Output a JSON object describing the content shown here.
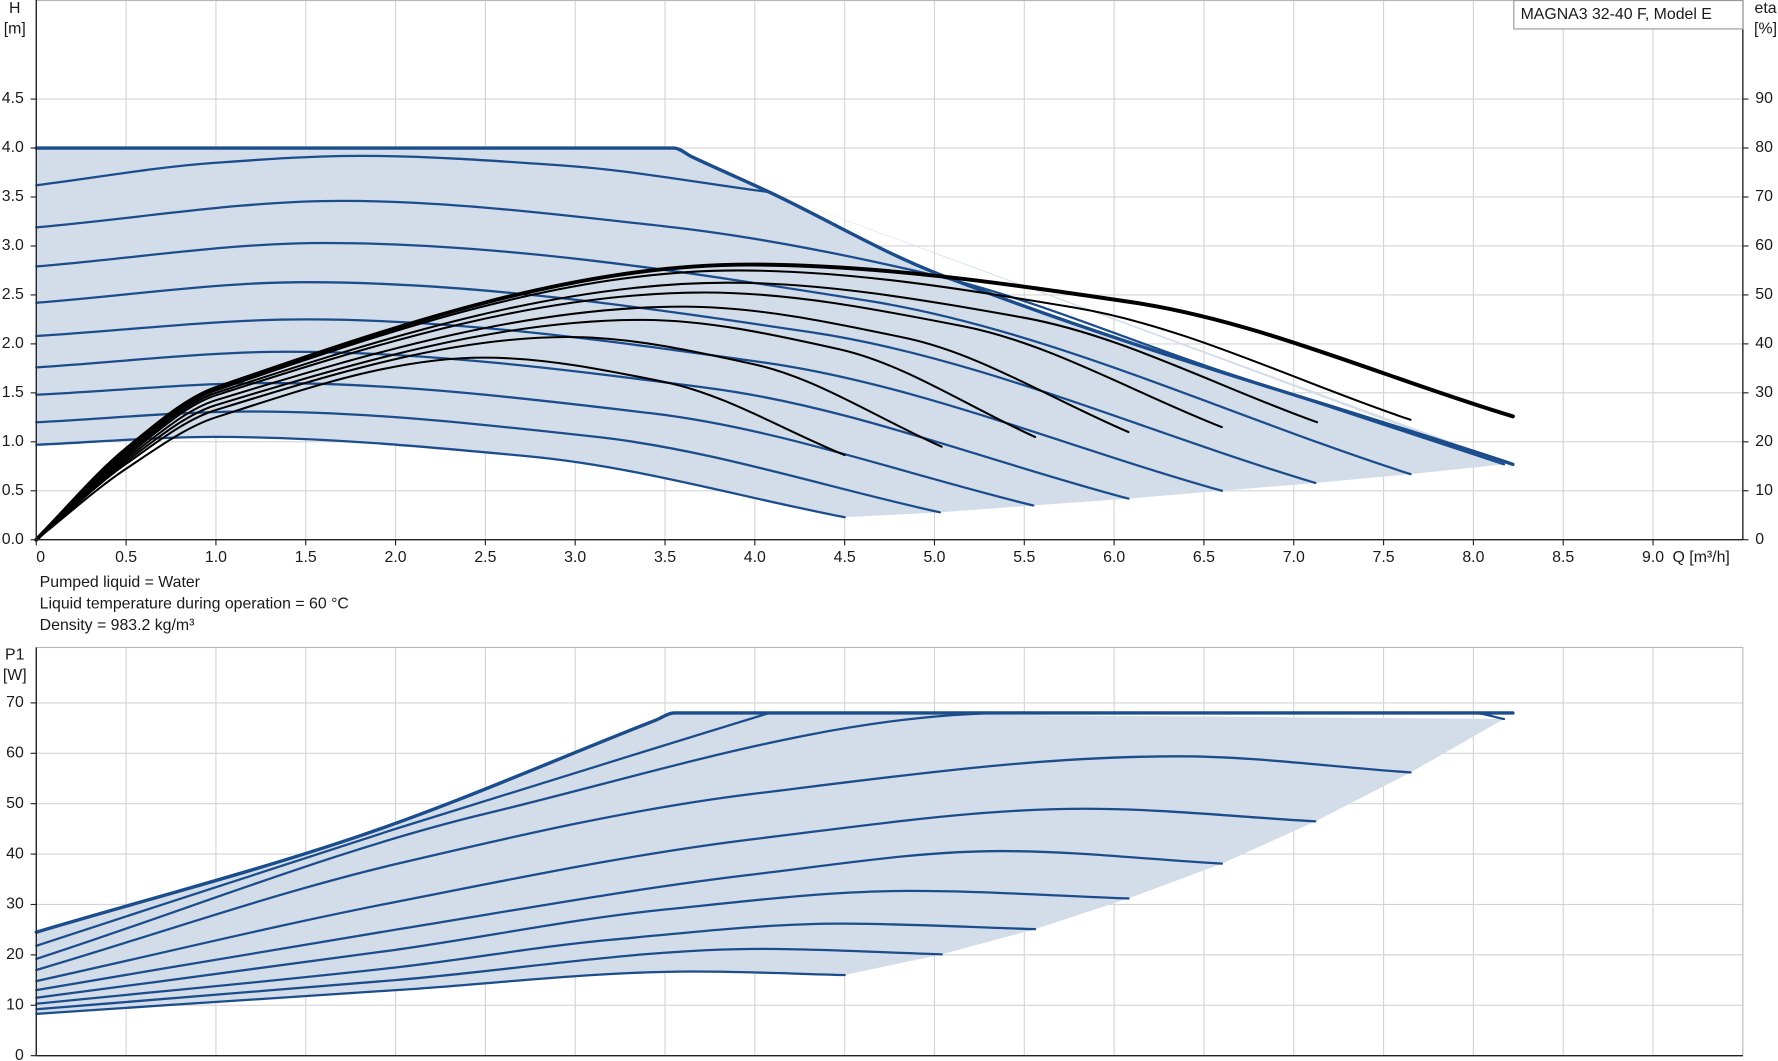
{
  "chart_data": [
    {
      "type": "line",
      "title": "MAGNA3 32-40 F, Model E",
      "xlabel": "Q [m³/h]",
      "ylabel": [
        "H",
        "[m]"
      ],
      "y2label": [
        "eta",
        "[%]"
      ],
      "notes": [
        "Pumped liquid = Water",
        "Liquid temperature during operation = 60 °C",
        "Density = 983.2 kg/m³"
      ],
      "xlim": [
        0,
        9.5
      ],
      "ylim": [
        0,
        5.5
      ],
      "y2lim": [
        0,
        110
      ],
      "xticks": [
        0,
        0.5,
        {
          "value": 1,
          "label": "1.0"
        },
        1.5,
        {
          "value": 2,
          "label": "2.0"
        },
        2.5,
        {
          "value": 3,
          "label": "3.0"
        },
        3.5,
        {
          "value": 4,
          "label": "4.0"
        },
        4.5,
        {
          "value": 5,
          "label": "5.0"
        },
        5.5,
        {
          "value": 6,
          "label": "6.0"
        },
        6.5,
        {
          "value": 7,
          "label": "7.0"
        },
        7.5,
        {
          "value": 8,
          "label": "8.0"
        },
        8.5,
        {
          "value": 9,
          "label": "9.0"
        }
      ],
      "yticks": [
        {
          "value": 0,
          "label": "0.0"
        },
        0.5,
        {
          "value": 1,
          "label": "1.0"
        },
        1.5,
        {
          "value": 2,
          "label": "2.0"
        },
        2.5,
        {
          "value": 3,
          "label": "3.0"
        },
        3.5,
        {
          "value": 4,
          "label": "4.0"
        },
        4.5
      ],
      "y2ticks": [
        0,
        10,
        20,
        30,
        40,
        50,
        60,
        70,
        80,
        90
      ],
      "grid": true,
      "fill_color": "#d3dde9",
      "series": [
        {
          "color": "#1b4c8c",
          "line_width": 3,
          "x": [
            0,
            3.55,
            3.65,
            4.08,
            5.0,
            8.22
          ],
          "values": [
            4.0,
            4.0,
            3.91,
            3.55,
            2.73,
            0.77
          ]
        },
        {
          "color": "#1b4c8c",
          "line_width": 2,
          "x": [
            0,
            1.0,
            1.8,
            2.94,
            4.08
          ],
          "values": [
            3.62,
            3.85,
            3.92,
            3.82,
            3.55
          ]
        },
        {
          "color": "#1b4c8c",
          "line_width": 2,
          "x": [
            0,
            1.7,
            3.5,
            5.0,
            6.6,
            8.17
          ],
          "values": [
            3.19,
            3.46,
            3.2,
            2.7,
            1.72,
            0.77
          ]
        },
        {
          "color": "#1b4c8c",
          "line_width": 2,
          "x": [
            0,
            1.6,
            4.63,
            7.65
          ],
          "values": [
            2.79,
            3.03,
            2.44,
            0.67
          ]
        },
        {
          "color": "#1b4c8c",
          "line_width": 2,
          "x": [
            0,
            1.5,
            4.31,
            7.12
          ],
          "values": [
            2.42,
            2.63,
            2.12,
            0.58
          ]
        },
        {
          "color": "#1b4c8c",
          "line_width": 2,
          "x": [
            0,
            1.5,
            4.05,
            6.6
          ],
          "values": [
            2.08,
            2.25,
            1.81,
            0.5
          ]
        },
        {
          "color": "#1b4c8c",
          "line_width": 2,
          "x": [
            0,
            1.4,
            3.74,
            6.08
          ],
          "values": [
            1.76,
            1.92,
            1.55,
            0.42
          ]
        },
        {
          "color": "#1b4c8c",
          "line_width": 2,
          "x": [
            0,
            1.3,
            3.43,
            5.55
          ],
          "values": [
            1.48,
            1.6,
            1.29,
            0.35
          ]
        },
        {
          "color": "#1b4c8c",
          "line_width": 2,
          "x": [
            0,
            1.2,
            3.12,
            5.03
          ],
          "values": [
            1.2,
            1.31,
            1.05,
            0.28
          ]
        },
        {
          "color": "#1b4c8c",
          "line_width": 2,
          "x": [
            0,
            1.0,
            2.75,
            4.5
          ],
          "values": [
            0.97,
            1.05,
            0.85,
            0.23
          ]
        },
        {
          "color": "#000000",
          "line_width": 1.8,
          "axis": "y2",
          "x": [
            0,
            0.5,
            1.0,
            2.49,
            3.5,
            4.5
          ],
          "values": [
            0,
            14.5,
            25,
            37.2,
            32.2,
            17.3
          ]
        },
        {
          "color": "#000000",
          "line_width": 1.8,
          "axis": "y2",
          "x": [
            0,
            0.5,
            1.0,
            2.96,
            4.0,
            5.04
          ],
          "values": [
            0,
            15.5,
            26.5,
            41.4,
            35.8,
            19
          ]
        },
        {
          "color": "#000000",
          "line_width": 1.8,
          "axis": "y2",
          "x": [
            0,
            0.5,
            1.0,
            3.37,
            4.47,
            5.56
          ],
          "values": [
            0,
            16,
            27.5,
            44.9,
            38.9,
            21
          ]
        },
        {
          "color": "#000000",
          "line_width": 1.8,
          "axis": "y2",
          "x": [
            0,
            0.5,
            1.0,
            3.6,
            4.84,
            6.08
          ],
          "values": [
            0,
            16.5,
            28.5,
            47.6,
            41.2,
            22
          ]
        },
        {
          "color": "#000000",
          "line_width": 1.8,
          "axis": "y2",
          "x": [
            0,
            0.5,
            1.0,
            3.72,
            5.16,
            6.6
          ],
          "values": [
            0,
            17,
            29.5,
            50.5,
            43.6,
            23
          ]
        },
        {
          "color": "#000000",
          "line_width": 1.8,
          "axis": "y2",
          "x": [
            0,
            0.5,
            1.0,
            3.85,
            5.49,
            7.13
          ],
          "values": [
            0,
            17.5,
            30,
            52.5,
            45.4,
            24
          ]
        },
        {
          "color": "#000000",
          "line_width": 1.8,
          "axis": "y2",
          "x": [
            0,
            0.5,
            1.0,
            3.91,
            5.78,
            7.65
          ],
          "values": [
            0,
            18,
            30.5,
            55,
            47.4,
            24.5
          ]
        },
        {
          "color": "#000000",
          "line_width": 3.5,
          "axis": "y2",
          "x": [
            0,
            0.5,
            1.0,
            3.97,
            6.1,
            8.22
          ],
          "values": [
            0,
            18.5,
            31,
            56.2,
            48.5,
            25.2
          ]
        }
      ]
    },
    {
      "type": "line",
      "ylabel": [
        "P1",
        "[W]"
      ],
      "ylim": [
        0,
        81
      ],
      "yticks": [
        0,
        10,
        20,
        30,
        40,
        50,
        60,
        70
      ],
      "grid": true,
      "fill_color": "#d3dde9",
      "series": [
        {
          "color": "#1b4c8c",
          "line_width": 3,
          "x": [
            0,
            1.8,
            3.45,
            3.55,
            8.22
          ],
          "values": [
            24.5,
            43.6,
            66.6,
            68,
            68
          ]
        },
        {
          "color": "#1b4c8c",
          "line_width": 2,
          "x": [
            0,
            2.0,
            4.08
          ],
          "values": [
            21.8,
            45,
            68
          ]
        },
        {
          "color": "#1b4c8c",
          "line_width": 2,
          "x": [
            0,
            2.5,
            5.43,
            8.0,
            8.17
          ],
          "values": [
            19.2,
            48,
            68,
            68,
            66.8
          ]
        },
        {
          "color": "#1b4c8c",
          "line_width": 2,
          "x": [
            0,
            2.0,
            4.0,
            6.35,
            7.65
          ],
          "values": [
            17,
            38,
            52,
            59.4,
            56.2
          ]
        },
        {
          "color": "#1b4c8c",
          "line_width": 2,
          "x": [
            0,
            2.0,
            4.0,
            5.84,
            7.12
          ],
          "values": [
            14.8,
            30.5,
            43,
            49,
            46.5
          ]
        },
        {
          "color": "#1b4c8c",
          "line_width": 2,
          "x": [
            0,
            2.0,
            4.0,
            5.37,
            6.6
          ],
          "values": [
            13,
            25,
            36,
            40.6,
            38.1
          ]
        },
        {
          "color": "#1b4c8c",
          "line_width": 2,
          "x": [
            0,
            2.0,
            3.5,
            4.86,
            6.08
          ],
          "values": [
            11.5,
            21,
            29,
            32.7,
            31.2
          ]
        },
        {
          "color": "#1b4c8c",
          "line_width": 2,
          "x": [
            0,
            2.0,
            3.2,
            4.48,
            5.56
          ],
          "values": [
            10.3,
            17.5,
            23,
            26.2,
            25.1
          ]
        },
        {
          "color": "#1b4c8c",
          "line_width": 2,
          "x": [
            0,
            2.0,
            4.04,
            5.04
          ],
          "values": [
            9.2,
            15,
            21.2,
            20.1
          ]
        },
        {
          "color": "#1b4c8c",
          "line_width": 2,
          "x": [
            0,
            2.0,
            3.66,
            4.5
          ],
          "values": [
            8.3,
            13,
            16.7,
            16
          ]
        }
      ]
    }
  ]
}
